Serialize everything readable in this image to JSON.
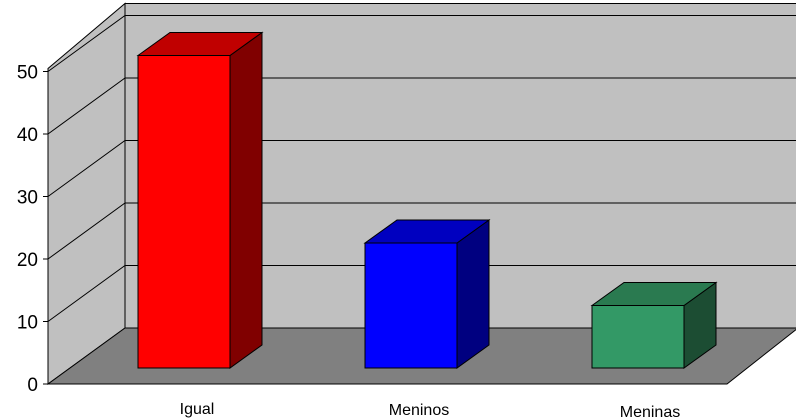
{
  "chart_data": {
    "type": "bar",
    "title": "",
    "xlabel": "",
    "ylabel": "",
    "categories": [
      "Igual",
      "Meninos",
      "Meninas"
    ],
    "values": [
      50,
      20,
      10
    ],
    "ylim": [
      0,
      50
    ],
    "y_ticks": [
      "0",
      "10",
      "20",
      "30",
      "40",
      "50"
    ],
    "grid": true,
    "legend": "none",
    "three_d": true,
    "colors": {
      "bars": [
        {
          "front": "#ff0000",
          "top": "#c00000",
          "side": "#800000"
        },
        {
          "front": "#0000ff",
          "top": "#0000c0",
          "side": "#000080"
        },
        {
          "front": "#339966",
          "top": "#2a7a50",
          "side": "#1c4d33"
        }
      ],
      "back_wall": "#c0c0c0",
      "side_wall": "#c0c0c0",
      "floor": "#808080",
      "grid_line": "#000000"
    }
  }
}
